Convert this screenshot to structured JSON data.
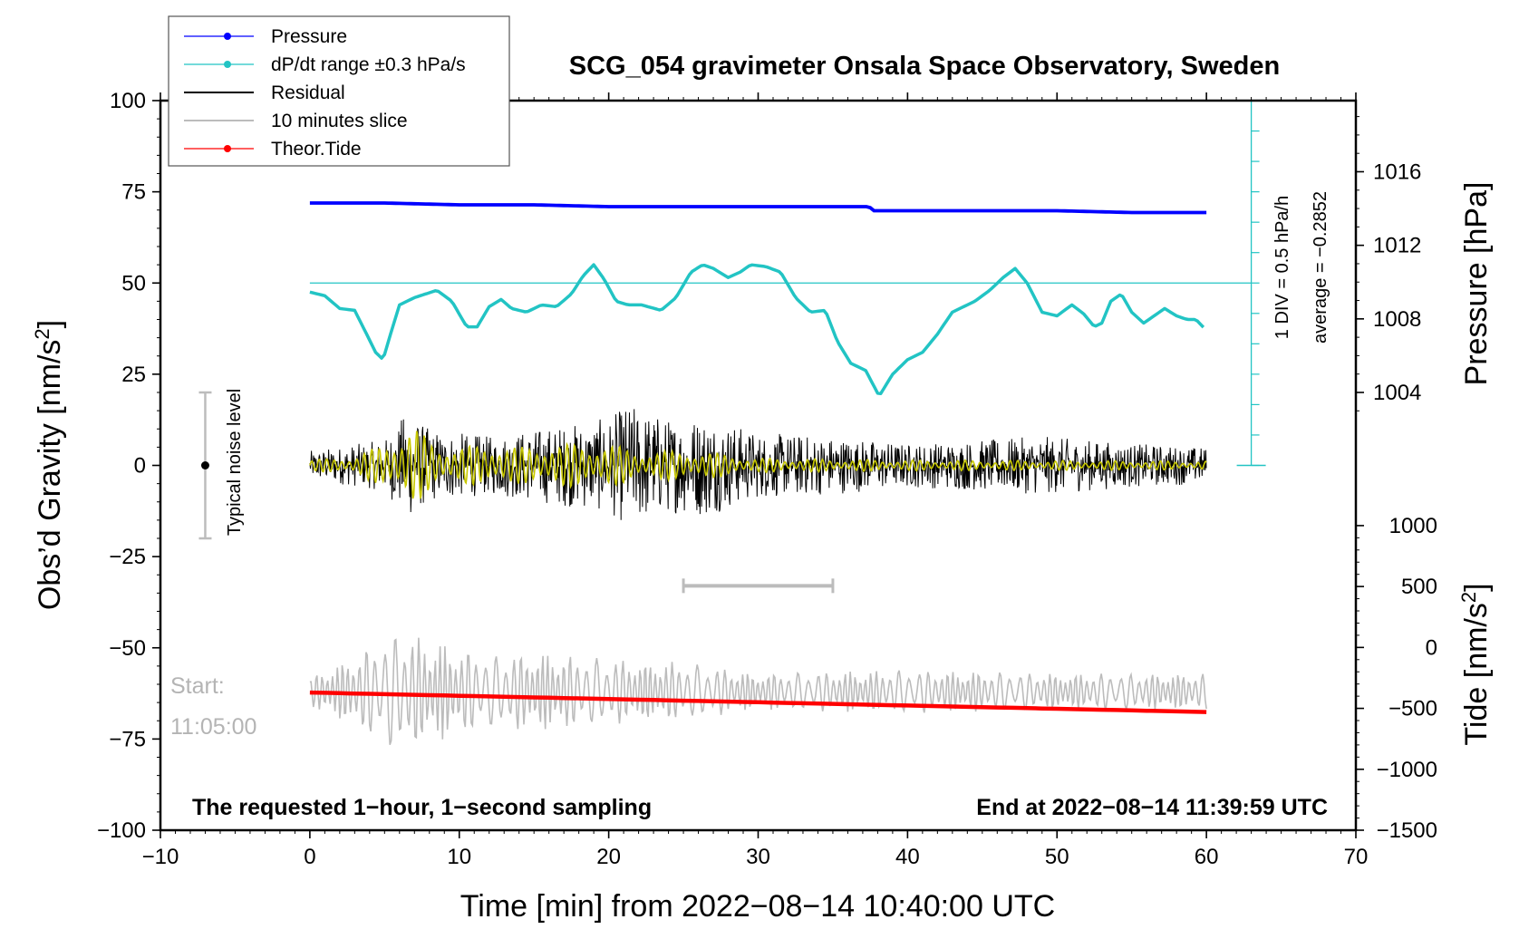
{
  "chart_data": {
    "type": "line",
    "title": "SCG_054 gravimeter Onsala Space Observatory, Sweden",
    "xlabel": "Time [min] from 2022−08−14 10:40:00 UTC",
    "ylabel": "Obs’d Gravity [nm/s²]",
    "xlim": [
      -10,
      70
    ],
    "ylim": [
      -100,
      100
    ],
    "x_ticks": [
      "−10",
      "0",
      "10",
      "20",
      "30",
      "40",
      "50",
      "60",
      "70"
    ],
    "y_ticks": [
      "100",
      "75",
      "50",
      "25",
      "0",
      "−25",
      "−50",
      "−75",
      "−100"
    ],
    "right_axes": {
      "pressure": {
        "label": "Pressure [hPa]",
        "ticks": [
          1004,
          1008,
          1012,
          1016
        ],
        "tick_labels": [
          "1004",
          "1008",
          "1012",
          "1016"
        ],
        "map": {
          "value_a": 1016,
          "gravity_a": 80.5,
          "value_b": 1004,
          "gravity_b": 20
        }
      },
      "tide": {
        "label": "Tide [nm/s²]",
        "ticks": [
          1000,
          500,
          0,
          -500,
          -1000,
          -1500
        ],
        "tick_labels": [
          "1000",
          "500",
          "0",
          "−500",
          "−1000",
          "−1500"
        ],
        "map": {
          "value_a": 1000,
          "gravity_a": -16.5,
          "value_b": -1500,
          "gravity_b": -100
        }
      }
    },
    "legend": {
      "position": "top-left",
      "entries": [
        {
          "label": "Pressure",
          "color": "#0000ff",
          "marker": true
        },
        {
          "label": "dP/dt range ±0.3 hPa/s",
          "color": "#22c4c4",
          "marker": true
        },
        {
          "label": "Residual",
          "color": "#000000",
          "marker": false
        },
        {
          "label": "10 minutes slice",
          "color": "#bcbcbc",
          "marker": false
        },
        {
          "label": "Theor.Tide",
          "color": "#ff0000",
          "marker": true
        }
      ]
    },
    "series": [
      {
        "name": "Pressure",
        "color": "#0000ff",
        "axis": "pressure",
        "x": [
          0,
          5,
          10,
          15,
          20,
          25,
          30,
          35,
          37.4,
          37.6,
          40,
          45,
          50,
          55,
          60
        ],
        "values": [
          1014.3,
          1014.3,
          1014.2,
          1014.2,
          1014.1,
          1014.1,
          1014.1,
          1014.1,
          1014.1,
          1014.0,
          1014.0,
          1014.0,
          1014.0,
          1013.9,
          1013.9
        ]
      },
      {
        "name": "dP/dt range ±0.3 hPa/s",
        "color": "#22c4c4",
        "axis": "gravity",
        "x": [
          0,
          1,
          2,
          3,
          3.8,
          4.4,
          4.9,
          5.4,
          6,
          7,
          8.5,
          9.5,
          10.5,
          11.2,
          12,
          12.8,
          13.5,
          14.5,
          15.5,
          16.5,
          17.5,
          18.3,
          19,
          19.7,
          20.5,
          21.3,
          22.2,
          23.5,
          24.5,
          25.5,
          26.3,
          27,
          28,
          28.8,
          29.5,
          30.5,
          31.5,
          32.5,
          33.5,
          34.5,
          35.3,
          36.2,
          37.2,
          38.1,
          39,
          40,
          41,
          42,
          43,
          44.5,
          45.5,
          46.4,
          47.2,
          48,
          49,
          50,
          51,
          51.8,
          52.5,
          53,
          53.6,
          54.3,
          55,
          55.8,
          56.5,
          57.2,
          58,
          58.7,
          59.3,
          60
        ],
        "values": [
          47.5,
          46.5,
          43,
          42.5,
          36,
          31,
          29,
          36,
          44,
          46,
          48,
          45,
          38,
          38,
          43.5,
          45.5,
          43,
          42,
          44,
          43.5,
          47,
          52,
          55,
          51,
          45,
          44,
          44,
          42.5,
          46,
          53,
          55,
          54,
          51.5,
          53,
          55,
          54.5,
          53,
          46,
          42,
          42.5,
          34,
          28,
          26,
          19,
          25,
          29,
          31,
          36,
          42,
          45,
          48,
          51.5,
          54,
          50,
          42,
          41,
          44,
          41.5,
          38,
          39,
          45,
          47,
          42,
          39,
          41,
          43,
          41,
          40,
          40,
          37
        ]
      },
      {
        "name": "Residual",
        "color": "#000000",
        "axis": "gravity",
        "generated": "noise",
        "x_range": [
          0,
          60
        ],
        "envelope_x": [
          0,
          5,
          6.5,
          8,
          10,
          12,
          15,
          20,
          21.3,
          24,
          26.5,
          30,
          35,
          40,
          45,
          49,
          55,
          60
        ],
        "envelope_amplitude": [
          4,
          7,
          15,
          10,
          9,
          8,
          10,
          13,
          17,
          13,
          14,
          9,
          8,
          6,
          7,
          8,
          6,
          5
        ]
      },
      {
        "name": "Filtered residual",
        "color": "#c8c800",
        "axis": "gravity",
        "generated": "oscillation",
        "x_range": [
          0,
          60
        ],
        "envelope_x": [
          0,
          3,
          5,
          6.8,
          8.5,
          10,
          12,
          14,
          16,
          18,
          20,
          22,
          26,
          30,
          40,
          60
        ],
        "envelope_amplitude": [
          1.5,
          2.5,
          6,
          11,
          6,
          5,
          6,
          5,
          6,
          6,
          6,
          4,
          4,
          2,
          1.5,
          1.2
        ]
      },
      {
        "name": "10 minutes slice",
        "color": "#bcbcbc",
        "axis": "gravity",
        "generated": "oscillation",
        "x_range": [
          0,
          60
        ],
        "baseline": -62,
        "envelope_x": [
          0,
          3,
          6,
          8,
          12,
          15,
          20,
          25,
          30,
          40,
          50,
          60
        ],
        "envelope_amplitude": [
          4,
          10,
          17,
          14,
          10,
          11,
          9,
          8,
          5,
          6,
          5,
          5
        ]
      },
      {
        "name": "Theor.Tide",
        "color": "#ff0000",
        "axis": "tide",
        "x": [
          0,
          60
        ],
        "values": [
          -370,
          -530
        ]
      }
    ],
    "annotations": {
      "dpdt_reference_level": 50,
      "dpdt_scale_text": "1 DIV = 0.5 hPa/h",
      "dpdt_average_text": "average = −0.2852",
      "noise_label": "Typical noise level",
      "noise_bar": {
        "x": -7,
        "center": 0,
        "half_range": 20
      },
      "slice_bar": {
        "x_start": 25,
        "x_end": 35,
        "y": -33
      },
      "start_label": "Start:",
      "start_time": "11:05:00",
      "bottom_left_note": "The requested 1−hour, 1−second sampling",
      "bottom_right_note": "End at 2022−08−14 11:39:59 UTC"
    }
  }
}
